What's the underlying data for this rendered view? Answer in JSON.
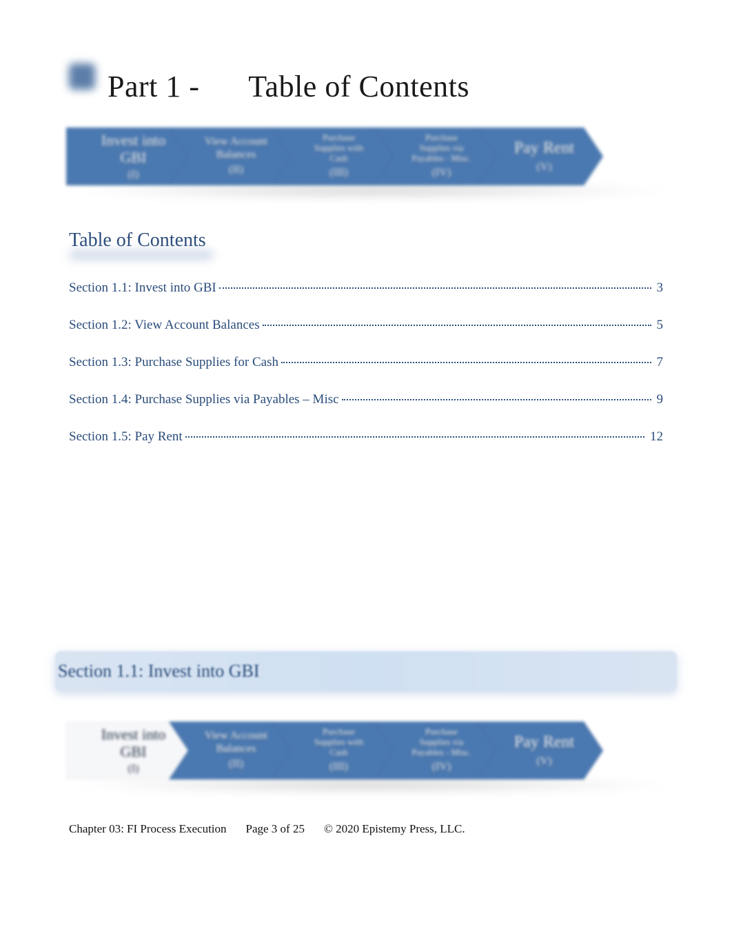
{
  "heading": {
    "part": "Part 1 -",
    "title": "Table of Contents"
  },
  "chevrons": {
    "shadow_color": "rgba(0,0,0,0.18)",
    "items": [
      {
        "line1": "Invest into",
        "line2": "GBI",
        "roman": "(I)",
        "color": "#4a78b0",
        "text_color": "#ffffff",
        "size": "large"
      },
      {
        "line1": "View Account",
        "line2": "Balances",
        "roman": "(II)",
        "color": "#4a78b0",
        "text_color": "#ffffff",
        "size": "normal"
      },
      {
        "line1": "Purchase",
        "line2": "Supplies with",
        "line3": "Cash",
        "roman": "(III)",
        "color": "#4a78b0",
        "text_color": "#ffffff",
        "size": "small"
      },
      {
        "line1": "Purchase",
        "line2": "Supplies via",
        "line3": "Payables - Misc.",
        "roman": "(IV)",
        "color": "#4a78b0",
        "text_color": "#ffffff",
        "size": "small"
      },
      {
        "line1": "Pay Rent",
        "roman": "(V)",
        "color": "#4a78b0",
        "text_color": "#ffffff",
        "size": "xlarge"
      }
    ]
  },
  "toc_heading": "Table of Contents",
  "toc": [
    {
      "label": "Section 1.1: Invest into GBI",
      "page": "3"
    },
    {
      "label": "Section 1.2: View Account Balances",
      "page": "5"
    },
    {
      "label": "Section 1.3: Purchase Supplies for Cash",
      "page": "7"
    },
    {
      "label": "Section 1.4: Purchase Supplies via Payables – Misc",
      "page": "9"
    },
    {
      "label": "Section 1.5: Pay Rent",
      "page": "12"
    }
  ],
  "section_banner": "Section 1.1: Invest into GBI",
  "chevrons2": {
    "items": [
      {
        "line1": "Invest into",
        "line2": "GBI",
        "roman": "(I)",
        "color": "#f6f7f9",
        "text_color": "#1f2b40",
        "size": "large"
      },
      {
        "line1": "View Account",
        "line2": "Balances",
        "roman": "(II)",
        "color": "#4a78b0",
        "text_color": "#ffffff",
        "size": "normal"
      },
      {
        "line1": "Purchase",
        "line2": "Supplies with",
        "line3": "Cash",
        "roman": "(III)",
        "color": "#4a78b0",
        "text_color": "#ffffff",
        "size": "small"
      },
      {
        "line1": "Purchase",
        "line2": "Supplies via",
        "line3": "Payables - Misc.",
        "roman": "(IV)",
        "color": "#4a78b0",
        "text_color": "#ffffff",
        "size": "small"
      },
      {
        "line1": "Pay Rent",
        "roman": "(V)",
        "color": "#4a78b0",
        "text_color": "#ffffff",
        "size": "xlarge"
      }
    ]
  },
  "footer": {
    "chapter": "Chapter 03: FI Process Execution",
    "page": "Page 3 of 25",
    "copyright": "© 2020 Epistemy Press, LLC."
  },
  "colors": {
    "link": "#2a4c7a",
    "banner_bg": "#d9e4f2",
    "heading_square": "#5b7da8"
  }
}
